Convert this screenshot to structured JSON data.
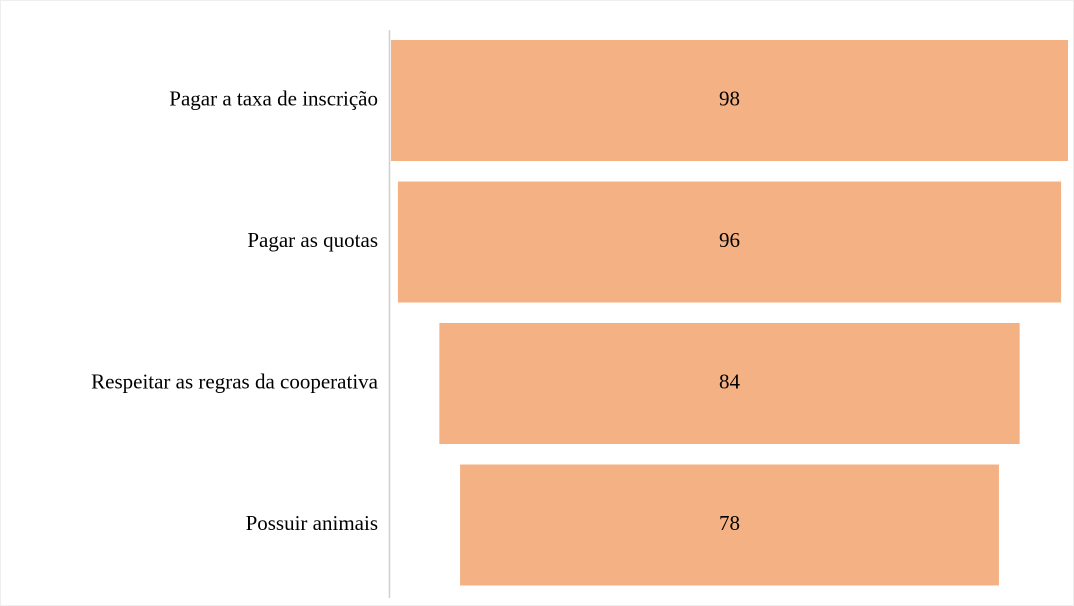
{
  "chart_data": {
    "type": "funnel",
    "categories": [
      "Pagar a taxa de inscrição",
      "Pagar as quotas",
      "Respeitar as regras da cooperativa",
      "Possuir animais"
    ],
    "values": [
      98,
      96,
      84,
      78
    ],
    "color": "#f4b183"
  }
}
